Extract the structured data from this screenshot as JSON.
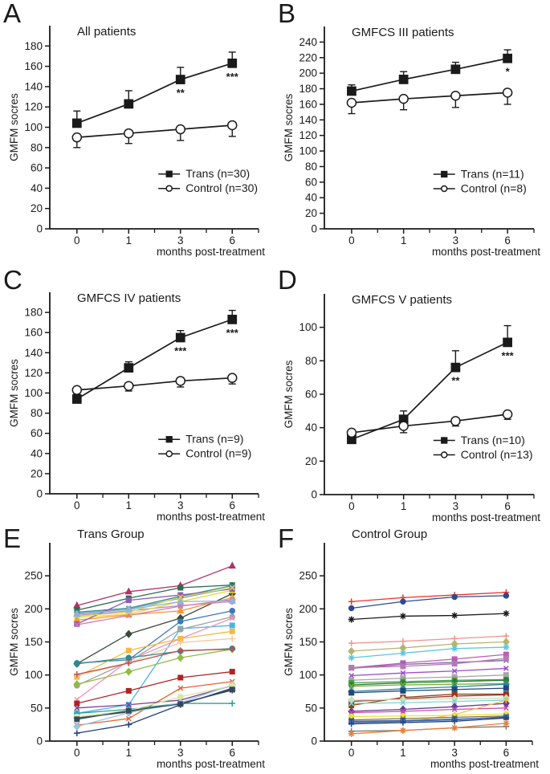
{
  "figure": {
    "background": "#ffffff",
    "text_color": "#1a1a1a",
    "axis_color": "#1a1a1a"
  },
  "chart_data": [
    {
      "type": "line",
      "panel": "A",
      "title": "All patients",
      "xlabel": "months post-treatment",
      "ylabel": "GMFM socres",
      "categories": [
        "0",
        "1",
        "3",
        "6"
      ],
      "ylim": [
        0,
        200
      ],
      "yticks": [
        0,
        20,
        40,
        60,
        80,
        100,
        120,
        140,
        160,
        180
      ],
      "grid": false,
      "legend": true,
      "legend_position": "lower-right",
      "series": [
        {
          "name": "Trans (n=30)",
          "marker": "square",
          "style": "filled",
          "color": "#1a1a1a",
          "values": [
            104,
            123,
            147,
            163
          ],
          "err": [
            12,
            13,
            12,
            11
          ],
          "err_dir": "up"
        },
        {
          "name": "Control (n=30)",
          "marker": "circle",
          "style": "open",
          "color": "#1a1a1a",
          "values": [
            90,
            94,
            98,
            102
          ],
          "err": [
            10,
            10,
            11,
            11
          ],
          "err_dir": "down"
        }
      ],
      "annotations": [
        {
          "x_index": 2,
          "text": "**"
        },
        {
          "x_index": 3,
          "text": "***"
        }
      ]
    },
    {
      "type": "line",
      "panel": "B",
      "title": "GMFCS III patients",
      "xlabel": "months post-treatment",
      "ylabel": "GMFM socres",
      "categories": [
        "0",
        "1",
        "3",
        "6"
      ],
      "ylim": [
        0,
        260
      ],
      "yticks": [
        0,
        20,
        40,
        60,
        80,
        100,
        120,
        140,
        160,
        180,
        200,
        220,
        240
      ],
      "grid": false,
      "legend": true,
      "legend_position": "lower-right",
      "series": [
        {
          "name": "Trans (n=11)",
          "marker": "square",
          "style": "filled",
          "color": "#1a1a1a",
          "values": [
            177,
            192,
            205,
            219
          ],
          "err": [
            8,
            10,
            9,
            11
          ],
          "err_dir": "up"
        },
        {
          "name": "Control (n=8)",
          "marker": "circle",
          "style": "open",
          "color": "#1a1a1a",
          "values": [
            162,
            167,
            171,
            175
          ],
          "err": [
            14,
            14,
            15,
            15
          ],
          "err_dir": "down"
        }
      ],
      "annotations": [
        {
          "x_index": 3,
          "text": "*"
        }
      ]
    },
    {
      "type": "line",
      "panel": "C",
      "title": "GMFCS IV patients",
      "xlabel": "months post-treatment",
      "ylabel": "GMFM socres",
      "categories": [
        "0",
        "1",
        "3",
        "6"
      ],
      "ylim": [
        0,
        200
      ],
      "yticks": [
        0,
        20,
        40,
        60,
        80,
        100,
        120,
        140,
        160,
        180
      ],
      "grid": false,
      "legend": true,
      "legend_position": "lower-right",
      "series": [
        {
          "name": "Trans (n=9)",
          "marker": "square",
          "style": "filled",
          "color": "#1a1a1a",
          "values": [
            94,
            125,
            155,
            173
          ],
          "err": [
            5,
            6,
            7,
            9
          ],
          "err_dir": "up"
        },
        {
          "name": "Control (n=9)",
          "marker": "circle",
          "style": "open",
          "color": "#1a1a1a",
          "values": [
            103,
            107,
            112,
            115
          ],
          "err": [
            5,
            5,
            6,
            6
          ],
          "err_dir": "down"
        }
      ],
      "annotations": [
        {
          "x_index": 2,
          "text": "***"
        },
        {
          "x_index": 3,
          "text": "***"
        }
      ]
    },
    {
      "type": "line",
      "panel": "D",
      "title": "GMFCS V patients",
      "xlabel": "months post-treatment",
      "ylabel": "GMFM socres",
      "categories": [
        "0",
        "1",
        "3",
        "6"
      ],
      "ylim": [
        0,
        120
      ],
      "yticks": [
        0,
        20,
        40,
        60,
        80,
        100
      ],
      "grid": false,
      "legend": true,
      "legend_position": "lower-right",
      "series": [
        {
          "name": "Trans (n=10)",
          "marker": "square",
          "style": "filled",
          "color": "#1a1a1a",
          "values": [
            33,
            45,
            76,
            91
          ],
          "err": [
            3,
            5,
            10,
            10
          ],
          "err_dir": "up"
        },
        {
          "name": "Control (n=13)",
          "marker": "circle",
          "style": "open",
          "color": "#1a1a1a",
          "values": [
            37,
            41,
            44,
            48
          ],
          "err": [
            3,
            4,
            3,
            3
          ],
          "err_dir": "down"
        }
      ],
      "annotations": [
        {
          "x_index": 2,
          "text": "**"
        },
        {
          "x_index": 3,
          "text": "***"
        }
      ]
    },
    {
      "type": "line",
      "panel": "E",
      "title": "Trans Group",
      "xlabel": "months post-treatment",
      "ylabel": "GMFM socres",
      "categories": [
        "0",
        "1",
        "3",
        "6"
      ],
      "ylim": [
        0,
        300
      ],
      "yticks": [
        0,
        50,
        100,
        150,
        200,
        250
      ],
      "grid": false,
      "legend": false,
      "note": "individual patient trajectories, n=30",
      "series": [
        {
          "marker": "triangle",
          "color": "#b03468",
          "values": [
            205,
            226,
            235,
            265
          ]
        },
        {
          "marker": "diamond",
          "color": "#3a4a3a",
          "values": [
            117,
            162,
            186,
            223
          ]
        },
        {
          "marker": "square",
          "color": "#2e6b4f",
          "values": [
            198,
            216,
            232,
            236
          ]
        },
        {
          "marker": "x",
          "color": "#2f9090",
          "values": [
            195,
            201,
            219,
            235
          ]
        },
        {
          "marker": "x",
          "color": "#7f9fbf",
          "values": [
            193,
            200,
            216,
            232
          ]
        },
        {
          "marker": "circle",
          "color": "#b38cc9",
          "values": [
            190,
            197,
            205,
            211
          ]
        },
        {
          "marker": "square",
          "color": "#e8d832",
          "values": [
            187,
            192,
            211,
            228
          ]
        },
        {
          "marker": "triangle",
          "color": "#f59b2d",
          "values": [
            183,
            191,
            197,
            217
          ]
        },
        {
          "marker": "square",
          "color": "#8f5bb5",
          "values": [
            177,
            213,
            221,
            230
          ]
        },
        {
          "marker": "x",
          "color": "#d977b5",
          "values": [
            176,
            190,
            204,
            214
          ]
        },
        {
          "marker": "square",
          "color": "#45b5e8",
          "values": [
            42,
            55,
            170,
            175
          ]
        },
        {
          "marker": "circle",
          "color": "#3a7abd",
          "values": [
            118,
            123,
            181,
            197
          ]
        },
        {
          "marker": "circle",
          "color": "#a0a0a0",
          "values": [
            84,
            120,
            169,
            188
          ]
        },
        {
          "marker": "x",
          "color": "#f291c0",
          "values": [
            63,
            122,
            155,
            186
          ]
        },
        {
          "marker": "square",
          "color": "#f5b942",
          "values": [
            97,
            137,
            155,
            166
          ]
        },
        {
          "marker": "plus",
          "color": "#f7c89b",
          "values": [
            99,
            118,
            149,
            155
          ]
        },
        {
          "marker": "diamond",
          "color": "#8fbc45",
          "values": [
            86,
            105,
            126,
            139
          ]
        },
        {
          "marker": "circle",
          "color": "#2e8b8b",
          "values": [
            117,
            126,
            136,
            140
          ]
        },
        {
          "marker": "square",
          "color": "#b22222",
          "values": [
            57,
            76,
            96,
            105
          ]
        },
        {
          "marker": "x",
          "color": "#e8622d",
          "values": [
            24,
            34,
            80,
            90
          ]
        },
        {
          "marker": "plus",
          "color": "#1f3d7a",
          "values": [
            12,
            25,
            55,
            80
          ]
        },
        {
          "marker": "asterisk",
          "color": "#404040",
          "values": [
            35,
            44,
            57,
            77
          ]
        },
        {
          "marker": "plus",
          "color": "#2aa198",
          "values": [
            42,
            48,
            57,
            57
          ]
        },
        {
          "marker": "x",
          "color": "#7d3c98",
          "values": [
            50,
            55,
            62,
            84
          ]
        },
        {
          "marker": "diamond",
          "color": "#9dc3e6",
          "values": [
            22,
            43,
            58,
            85
          ]
        },
        {
          "marker": "circle",
          "color": "#d9e8a0",
          "values": [
            37,
            46,
            67,
            84
          ]
        },
        {
          "marker": "square",
          "color": "#34495e",
          "values": [
            33,
            46,
            56,
            78
          ]
        },
        {
          "marker": "x",
          "color": "#d8d84a",
          "values": [
            189,
            195,
            218,
            232
          ]
        },
        {
          "marker": "triangle",
          "color": "#8db4e2",
          "values": [
            192,
            199,
            211,
            212
          ]
        },
        {
          "marker": "plus",
          "color": "#c0504d",
          "values": [
            101,
            118,
            137,
            139
          ]
        }
      ]
    },
    {
      "type": "line",
      "panel": "F",
      "title": "Control Group",
      "xlabel": "months post-treatment",
      "ylabel": "GMFM socres",
      "categories": [
        "0",
        "1",
        "3",
        "6"
      ],
      "ylim": [
        0,
        300
      ],
      "yticks": [
        0,
        50,
        100,
        150,
        200,
        250
      ],
      "grid": false,
      "legend": false,
      "note": "individual patient trajectories, n=30",
      "series": [
        {
          "marker": "plus",
          "color": "#e8342a",
          "values": [
            211,
            217,
            221,
            225
          ]
        },
        {
          "marker": "circle",
          "color": "#2e4a8f",
          "values": [
            201,
            211,
            218,
            220
          ]
        },
        {
          "marker": "asterisk",
          "color": "#1a1a1a",
          "values": [
            184,
            189,
            190,
            193
          ]
        },
        {
          "marker": "plus",
          "color": "#f2928c",
          "values": [
            148,
            151,
            155,
            159
          ]
        },
        {
          "marker": "diamond",
          "color": "#b5b56b",
          "values": [
            136,
            141,
            147,
            150
          ]
        },
        {
          "marker": "asterisk",
          "color": "#5bc8dc",
          "values": [
            126,
            133,
            140,
            142
          ]
        },
        {
          "marker": "square",
          "color": "#c05bb8",
          "values": [
            111,
            118,
            124,
            131
          ]
        },
        {
          "marker": "x",
          "color": "#8064a2",
          "values": [
            110,
            116,
            119,
            122
          ]
        },
        {
          "marker": "square",
          "color": "#b37bb3",
          "values": [
            111,
            113,
            117,
            125
          ]
        },
        {
          "marker": "x",
          "color": "#9b4dca",
          "values": [
            99,
            103,
            106,
            110
          ]
        },
        {
          "marker": "square",
          "color": "#a6a6a6",
          "values": [
            92,
            95,
            97,
            100
          ]
        },
        {
          "marker": "square",
          "color": "#4a9e4a",
          "values": [
            88,
            90,
            92,
            93
          ]
        },
        {
          "marker": "circle",
          "color": "#2e7d32",
          "values": [
            85,
            88,
            90,
            92
          ]
        },
        {
          "marker": "x",
          "color": "#76b041",
          "values": [
            83,
            85,
            86,
            87
          ]
        },
        {
          "marker": "diamond",
          "color": "#31859c",
          "values": [
            75,
            79,
            82,
            86
          ]
        },
        {
          "marker": "square",
          "color": "#1f497d",
          "values": [
            73,
            76,
            78,
            80
          ]
        },
        {
          "marker": "square",
          "color": "#8b4513",
          "values": [
            54,
            66,
            71,
            71
          ]
        },
        {
          "marker": "circle",
          "color": "#a52a2a",
          "values": [
            60,
            64,
            68,
            70
          ]
        },
        {
          "marker": "diamond",
          "color": "#c5e0b4",
          "values": [
            62,
            63,
            64,
            65
          ]
        },
        {
          "marker": "x",
          "color": "#7fd4d4",
          "values": [
            57,
            58,
            60,
            62
          ]
        },
        {
          "marker": "diamond",
          "color": "#6a3d9a",
          "values": [
            45,
            48,
            52,
            57
          ]
        },
        {
          "marker": "x",
          "color": "#d24da6",
          "values": [
            43,
            45,
            48,
            50
          ]
        },
        {
          "marker": "plus",
          "color": "#f5c242",
          "values": [
            27,
            28,
            40,
            62
          ]
        },
        {
          "marker": "circle",
          "color": "#e8e337",
          "values": [
            37,
            38,
            39,
            41
          ]
        },
        {
          "marker": "x",
          "color": "#8b6f47",
          "values": [
            32,
            34,
            36,
            38
          ]
        },
        {
          "marker": "square",
          "color": "#2f5597",
          "values": [
            30,
            31,
            33,
            36
          ]
        },
        {
          "marker": "x",
          "color": "#4472c4",
          "values": [
            28,
            30,
            32,
            37
          ]
        },
        {
          "marker": "plus",
          "color": "#264478",
          "values": [
            26,
            28,
            30,
            35
          ]
        },
        {
          "marker": "plus",
          "color": "#747474",
          "values": [
            15,
            16,
            20,
            22
          ]
        },
        {
          "marker": "asterisk",
          "color": "#ed7d31",
          "values": [
            11,
            16,
            20,
            27
          ]
        }
      ]
    }
  ]
}
